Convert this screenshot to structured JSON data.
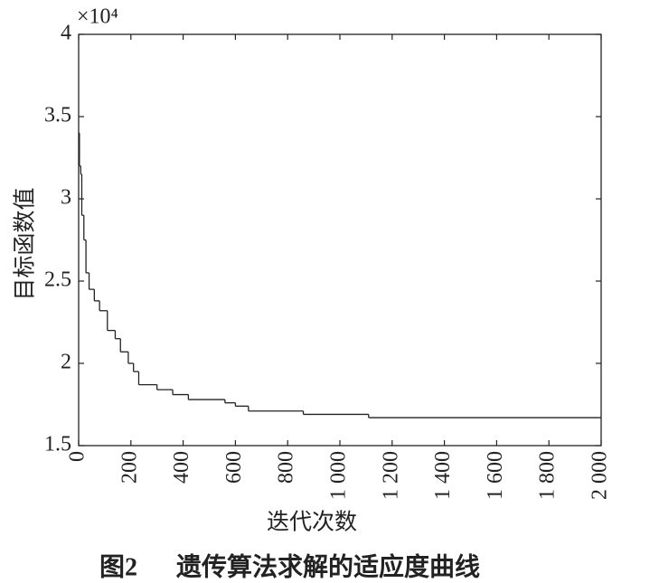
{
  "chart_data": {
    "type": "line",
    "step": "post",
    "caption_label": "图2",
    "title": "遗传算法求解的适应度曲线",
    "x_label": "迭代次数",
    "y_label": "目标函数值",
    "y_multiplier": "×10⁴",
    "x": [
      0,
      3,
      8,
      12,
      20,
      28,
      40,
      60,
      80,
      110,
      140,
      160,
      190,
      210,
      230,
      300,
      360,
      420,
      560,
      600,
      650,
      860,
      1110,
      2000
    ],
    "series": [
      {
        "color": "#222222",
        "values": [
          3.4,
          3.2,
          3.15,
          2.9,
          2.75,
          2.55,
          2.45,
          2.38,
          2.32,
          2.2,
          2.15,
          2.07,
          2.0,
          1.95,
          1.87,
          1.84,
          1.81,
          1.78,
          1.76,
          1.74,
          1.71,
          1.69,
          1.67,
          1.67
        ]
      }
    ],
    "xlim": [
      0,
      2000
    ],
    "ylim": [
      1.5,
      4
    ],
    "xticks": [
      0,
      200,
      400,
      600,
      800,
      {
        "value": 1000,
        "label": "1 000"
      },
      {
        "value": 1200,
        "label": "1 200"
      },
      {
        "value": 1400,
        "label": "1 400"
      },
      {
        "value": 1600,
        "label": "1 600"
      },
      {
        "value": 1800,
        "label": "1 800"
      },
      {
        "value": 2000,
        "label": "2 000"
      }
    ],
    "yticks": [
      1.5,
      2,
      2.5,
      3,
      3.5,
      4
    ]
  }
}
